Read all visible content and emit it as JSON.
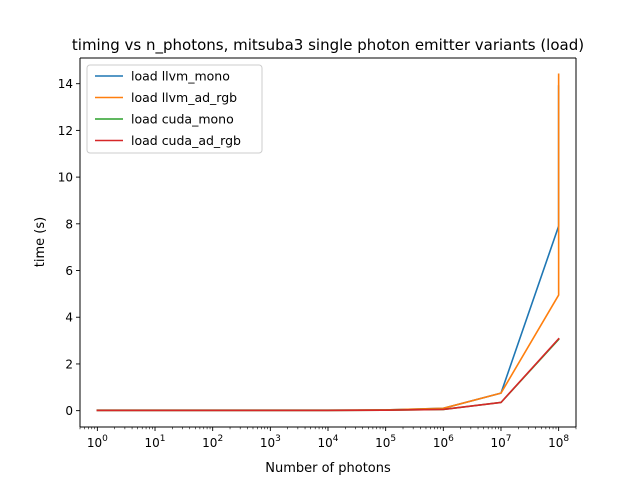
{
  "chart_data": {
    "type": "line",
    "title": "timing vs n_photons, mitsuba3 single photon emitter variants (load)",
    "xlabel": "Number of photons",
    "ylabel": "time (s)",
    "xscale": "log",
    "xlim": [
      0.5,
      200000000
    ],
    "ylim": [
      -0.7,
      15.1
    ],
    "grid": false,
    "legend_position": "top-left",
    "x_ticks": [
      {
        "value": 1,
        "base": "10",
        "exp": "0"
      },
      {
        "value": 10,
        "base": "10",
        "exp": "1"
      },
      {
        "value": 100,
        "base": "10",
        "exp": "2"
      },
      {
        "value": 1000,
        "base": "10",
        "exp": "3"
      },
      {
        "value": 10000,
        "base": "10",
        "exp": "4"
      },
      {
        "value": 100000,
        "base": "10",
        "exp": "5"
      },
      {
        "value": 1000000,
        "base": "10",
        "exp": "6"
      },
      {
        "value": 10000000,
        "base": "10",
        "exp": "7"
      },
      {
        "value": 100000000,
        "base": "10",
        "exp": "8"
      }
    ],
    "y_ticks": [
      {
        "value": 0,
        "label": "0"
      },
      {
        "value": 2,
        "label": "2"
      },
      {
        "value": 4,
        "label": "4"
      },
      {
        "value": 6,
        "label": "6"
      },
      {
        "value": 8,
        "label": "8"
      },
      {
        "value": 10,
        "label": "10"
      },
      {
        "value": 12,
        "label": "12"
      },
      {
        "value": 14,
        "label": "14"
      }
    ],
    "series": [
      {
        "name": "load llvm_mono",
        "color": "#1f77b4",
        "x": [
          1,
          10,
          100,
          1000,
          10000,
          100000,
          1000000,
          10000000,
          100000000,
          100000000
        ],
        "y": [
          0.02,
          0.02,
          0.02,
          0.02,
          0.02,
          0.03,
          0.1,
          0.75,
          7.9,
          13.9
        ]
      },
      {
        "name": "load llvm_ad_rgb",
        "color": "#ff7f0e",
        "x": [
          1,
          10,
          100,
          1000,
          10000,
          100000,
          1000000,
          10000000,
          100000000,
          100000000
        ],
        "y": [
          0.02,
          0.02,
          0.02,
          0.02,
          0.02,
          0.03,
          0.1,
          0.75,
          4.95,
          14.4
        ]
      },
      {
        "name": "load cuda_mono",
        "color": "#2ca02c",
        "x": [
          1,
          10,
          100,
          1000,
          10000,
          100000,
          1000000,
          10000000,
          100000000
        ],
        "y": [
          0.01,
          0.01,
          0.01,
          0.01,
          0.01,
          0.02,
          0.05,
          0.35,
          3.05
        ]
      },
      {
        "name": "load cuda_ad_rgb",
        "color": "#d62728",
        "x": [
          1,
          10,
          100,
          1000,
          10000,
          100000,
          1000000,
          10000000,
          100000000
        ],
        "y": [
          0.01,
          0.01,
          0.01,
          0.01,
          0.01,
          0.02,
          0.05,
          0.35,
          3.08
        ]
      }
    ]
  }
}
